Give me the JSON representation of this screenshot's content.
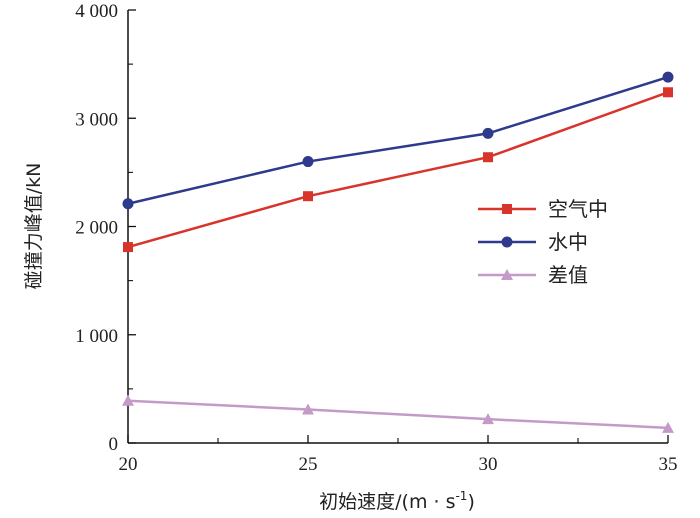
{
  "chart_data": {
    "type": "line",
    "title": "",
    "xlabel": "初始速度/(m · s",
    "xlabel_sup": "-1",
    "xlabel_close": ")",
    "ylabel": "碰撞力峰值/kN",
    "x": [
      20,
      25,
      30,
      35
    ],
    "xlim": [
      20,
      35
    ],
    "ylim": [
      0,
      4000
    ],
    "x_ticks": [
      "20",
      "25",
      "30",
      "35"
    ],
    "y_ticks": [
      "0",
      "1 000",
      "2 000",
      "3 000",
      "4 000"
    ],
    "y_tick_values": [
      0,
      1000,
      2000,
      3000,
      4000
    ],
    "grid": false,
    "legend_position": "right",
    "series": [
      {
        "name": "空气中",
        "values": [
          1810,
          2280,
          2640,
          3240
        ],
        "color": "#d9342b",
        "marker": "square"
      },
      {
        "name": "水中",
        "values": [
          2210,
          2600,
          2860,
          3380
        ],
        "color": "#2e3a8c",
        "marker": "circle"
      },
      {
        "name": "差值",
        "values": [
          390,
          310,
          220,
          140
        ],
        "color": "#c49ac8",
        "marker": "triangle"
      }
    ]
  }
}
